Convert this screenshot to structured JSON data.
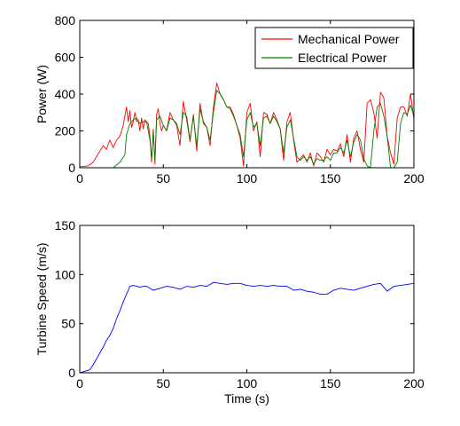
{
  "chart_data": [
    {
      "type": "line",
      "title": "",
      "xlabel": "",
      "ylabel": "Power (W)",
      "xlim": [
        0,
        200
      ],
      "ylim": [
        0,
        800
      ],
      "xticks": [
        "0",
        "50",
        "100",
        "150",
        "200"
      ],
      "yticks": [
        "0",
        "200",
        "400",
        "600",
        "800"
      ],
      "grid": false,
      "legend_position": "top-right",
      "series": [
        {
          "name": "Mechanical Power",
          "color": "#ff0000",
          "x": [
            0,
            5,
            8,
            10,
            12,
            14,
            16,
            18,
            20,
            22,
            24,
            26,
            28,
            29,
            30,
            31,
            32,
            33,
            34,
            35,
            36,
            37,
            38,
            39,
            40,
            41,
            42,
            43,
            44,
            45,
            46,
            47,
            48,
            49,
            50,
            52,
            54,
            56,
            58,
            60,
            62,
            64,
            66,
            68,
            70,
            72,
            74,
            76,
            78,
            80,
            82,
            84,
            86,
            88,
            90,
            92,
            94,
            96,
            98,
            100,
            102,
            104,
            106,
            108,
            110,
            112,
            114,
            116,
            118,
            120,
            122,
            124,
            126,
            128,
            130,
            132,
            134,
            136,
            138,
            140,
            142,
            144,
            146,
            148,
            150,
            152,
            154,
            156,
            158,
            160,
            162,
            164,
            166,
            168,
            170,
            172,
            174,
            176,
            178,
            180,
            182,
            184,
            186,
            188,
            190,
            192,
            194,
            196,
            198,
            200
          ],
          "y": [
            5,
            10,
            30,
            60,
            90,
            120,
            100,
            150,
            110,
            150,
            170,
            230,
            330,
            250,
            310,
            220,
            250,
            300,
            250,
            260,
            200,
            270,
            210,
            260,
            250,
            240,
            170,
            30,
            210,
            20,
            290,
            320,
            240,
            200,
            230,
            200,
            300,
            260,
            230,
            120,
            360,
            260,
            140,
            290,
            90,
            350,
            240,
            220,
            120,
            330,
            460,
            400,
            370,
            330,
            330,
            290,
            230,
            160,
            10,
            300,
            350,
            200,
            250,
            60,
            300,
            290,
            240,
            300,
            260,
            210,
            40,
            250,
            300,
            150,
            30,
            50,
            70,
            30,
            80,
            10,
            80,
            60,
            30,
            100,
            70,
            100,
            90,
            130,
            60,
            180,
            30,
            160,
            200,
            100,
            30,
            350,
            370,
            300,
            160,
            410,
            380,
            170,
            80,
            20,
            270,
            330,
            330,
            280,
            400,
            260
          ],
          "marker": "none"
        },
        {
          "name": "Electrical Power",
          "color": "#008000",
          "x": [
            0,
            20,
            24,
            27,
            28,
            30,
            32,
            34,
            36,
            38,
            40,
            42,
            43,
            44,
            45,
            46,
            48,
            50,
            52,
            54,
            56,
            58,
            60,
            62,
            64,
            66,
            68,
            70,
            72,
            74,
            76,
            78,
            80,
            82,
            84,
            86,
            88,
            90,
            92,
            94,
            96,
            98,
            100,
            102,
            104,
            106,
            108,
            110,
            112,
            114,
            116,
            118,
            120,
            122,
            124,
            126,
            128,
            130,
            132,
            134,
            136,
            138,
            140,
            142,
            144,
            146,
            148,
            150,
            152,
            154,
            156,
            158,
            160,
            162,
            164,
            166,
            168,
            170,
            172,
            174,
            176,
            178,
            180,
            182,
            184,
            186,
            188,
            190,
            192,
            194,
            196,
            198,
            200
          ],
          "y": [
            0,
            0,
            30,
            70,
            180,
            240,
            260,
            270,
            240,
            250,
            250,
            150,
            50,
            200,
            40,
            260,
            280,
            230,
            200,
            270,
            260,
            240,
            180,
            300,
            280,
            150,
            280,
            120,
            320,
            250,
            220,
            150,
            300,
            420,
            400,
            370,
            330,
            320,
            280,
            230,
            180,
            60,
            260,
            300,
            220,
            240,
            120,
            270,
            280,
            240,
            280,
            250,
            210,
            80,
            220,
            260,
            160,
            60,
            40,
            60,
            40,
            60,
            20,
            50,
            40,
            40,
            60,
            40,
            80,
            80,
            110,
            80,
            150,
            60,
            140,
            180,
            150,
            50,
            10,
            0,
            200,
            330,
            350,
            280,
            170,
            0,
            0,
            30,
            240,
            300,
            290,
            340,
            280
          ],
          "marker": "none"
        }
      ]
    },
    {
      "type": "line",
      "title": "",
      "xlabel": "Time (s)",
      "ylabel": "Turbine Speed (m/s)",
      "xlim": [
        0,
        200
      ],
      "ylim": [
        0,
        150
      ],
      "xticks": [
        "0",
        "50",
        "100",
        "150",
        "200"
      ],
      "yticks": [
        "0",
        "50",
        "100",
        "150"
      ],
      "grid": false,
      "legend_position": "none",
      "series": [
        {
          "name": "",
          "color": "#0000ff",
          "x": [
            0,
            2,
            4,
            6,
            8,
            10,
            12,
            14,
            16,
            18,
            20,
            22,
            24,
            26,
            28,
            30,
            32,
            34,
            36,
            38,
            40,
            44,
            48,
            52,
            56,
            60,
            64,
            68,
            72,
            76,
            80,
            84,
            88,
            92,
            96,
            100,
            104,
            108,
            112,
            116,
            120,
            124,
            128,
            132,
            136,
            140,
            144,
            148,
            152,
            156,
            160,
            164,
            168,
            172,
            176,
            180,
            184,
            188,
            192,
            196,
            200
          ],
          "y": [
            0,
            1,
            2,
            3,
            8,
            14,
            20,
            26,
            33,
            38,
            45,
            55,
            63,
            72,
            80,
            88,
            89,
            88,
            87,
            88,
            88,
            84,
            86,
            88,
            87,
            85,
            88,
            87,
            89,
            88,
            92,
            91,
            90,
            91,
            91,
            89,
            88,
            89,
            88,
            89,
            88,
            88,
            84,
            85,
            83,
            82,
            80,
            80,
            84,
            86,
            85,
            84,
            86,
            88,
            90,
            91,
            83,
            88,
            89,
            90,
            91
          ],
          "marker": "none"
        }
      ]
    }
  ]
}
